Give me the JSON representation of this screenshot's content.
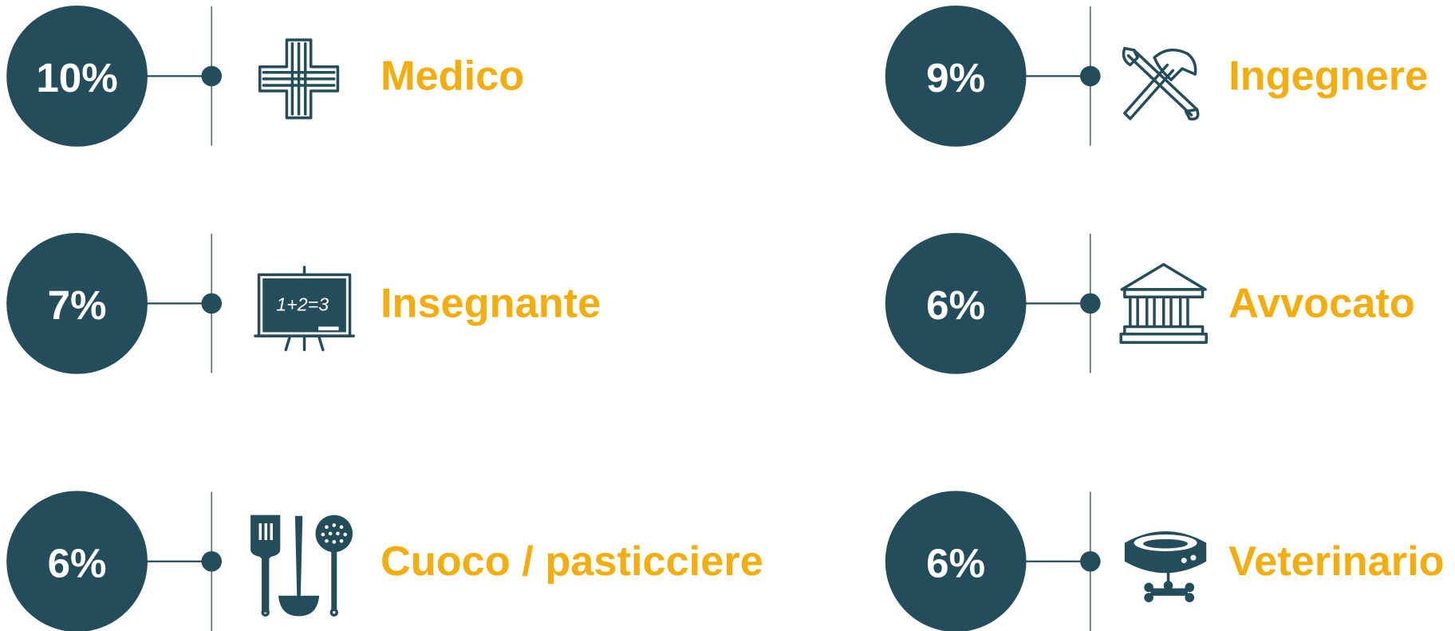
{
  "items": [
    {
      "value": "10%",
      "label": "Medico"
    },
    {
      "value": "9%",
      "label": "Ingegnere"
    },
    {
      "value": "7%",
      "label": "Insegnante"
    },
    {
      "value": "6%",
      "label": "Avvocato"
    },
    {
      "value": "6%",
      "label": "Cuoco / pasticciere"
    },
    {
      "value": "6%",
      "label": "Veterinario"
    }
  ],
  "board_text": "1+2=3"
}
